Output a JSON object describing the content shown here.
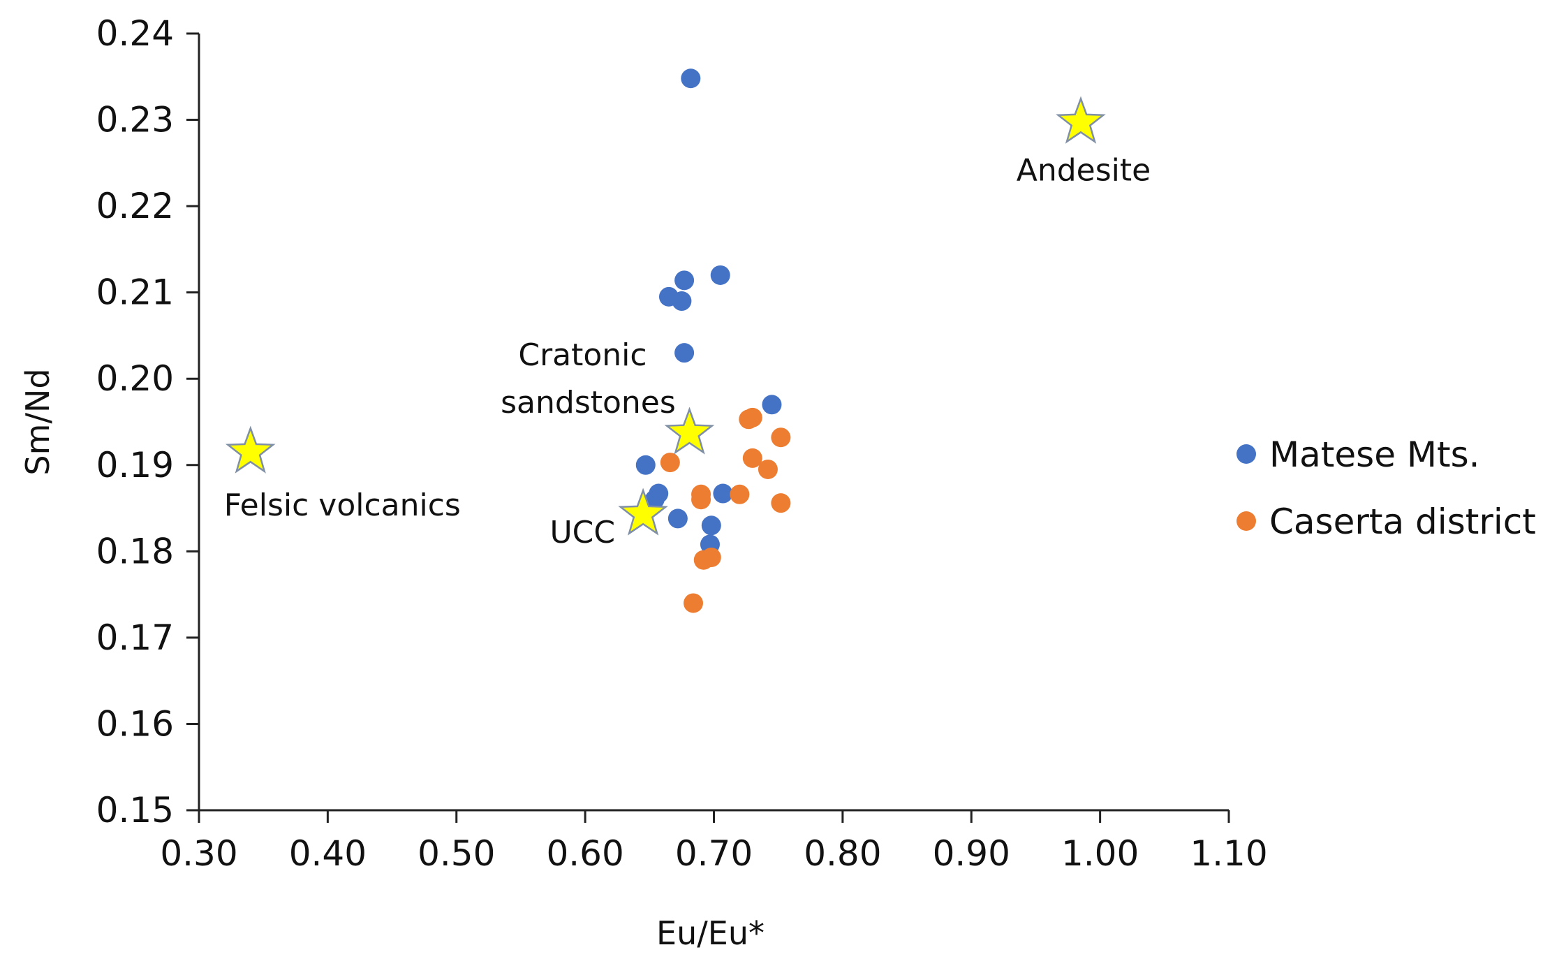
{
  "chart_data": {
    "type": "scatter",
    "title": "",
    "xlabel": "Eu/Eu*",
    "ylabel": "Sm/Nd",
    "xlim": [
      0.3,
      1.1
    ],
    "ylim": [
      0.15,
      0.24
    ],
    "x_ticks": [
      "0.30",
      "0.40",
      "0.50",
      "0.60",
      "0.70",
      "0.80",
      "0.90",
      "1.00",
      "1.10"
    ],
    "y_ticks": [
      "0.15",
      "0.16",
      "0.17",
      "0.18",
      "0.19",
      "0.20",
      "0.21",
      "0.22",
      "0.23",
      "0.24"
    ],
    "grid": false,
    "legend_position": "right",
    "series": [
      {
        "name": "Matese Mts.",
        "color": "#4472C4",
        "marker": "circle",
        "points": [
          [
            0.682,
            0.2348
          ],
          [
            0.705,
            0.212
          ],
          [
            0.677,
            0.2114
          ],
          [
            0.665,
            0.2095
          ],
          [
            0.675,
            0.209
          ],
          [
            0.677,
            0.203
          ],
          [
            0.745,
            0.197
          ],
          [
            0.647,
            0.19
          ],
          [
            0.657,
            0.1867
          ],
          [
            0.654,
            0.186
          ],
          [
            0.707,
            0.1867
          ],
          [
            0.672,
            0.1838
          ],
          [
            0.698,
            0.183
          ],
          [
            0.697,
            0.1808
          ]
        ]
      },
      {
        "name": "Caserta district",
        "color": "#ED7D31",
        "marker": "circle",
        "points": [
          [
            0.727,
            0.1953
          ],
          [
            0.73,
            0.1955
          ],
          [
            0.752,
            0.1932
          ],
          [
            0.666,
            0.1903
          ],
          [
            0.73,
            0.1908
          ],
          [
            0.742,
            0.1895
          ],
          [
            0.69,
            0.1866
          ],
          [
            0.69,
            0.186
          ],
          [
            0.72,
            0.1866
          ],
          [
            0.752,
            0.1856
          ],
          [
            0.692,
            0.179
          ],
          [
            0.698,
            0.1793
          ],
          [
            0.684,
            0.174
          ]
        ]
      }
    ],
    "references": [
      {
        "name": "Andesite",
        "x": 0.985,
        "y": 0.2297,
        "label_pos": "below"
      },
      {
        "name": "Felsic volcanics",
        "x": 0.34,
        "y": 0.1915,
        "label_pos": "below-right"
      },
      {
        "name": "Cratonic sandstones",
        "x": 0.681,
        "y": 0.1937,
        "label_pos": "above-left"
      },
      {
        "name": "UCC",
        "x": 0.645,
        "y": 0.1843,
        "label_pos": "below-left"
      }
    ],
    "reference_marker": {
      "shape": "star",
      "fill": "#FFFF00",
      "stroke": "#7F8FA6"
    }
  }
}
